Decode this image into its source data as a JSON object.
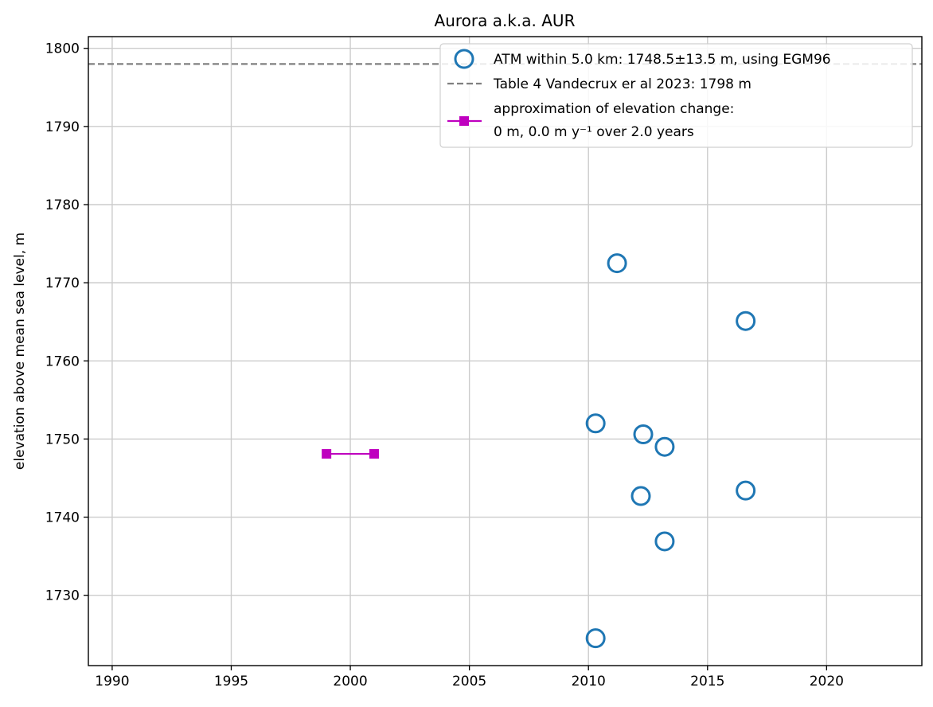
{
  "chart_data": {
    "type": "scatter",
    "title": "Aurora a.k.a. AUR",
    "xlabel": "",
    "ylabel": "elevation above mean sea level, m",
    "xlim": [
      1989,
      2024
    ],
    "ylim": [
      1721,
      1801.5
    ],
    "xticks": [
      1990,
      1995,
      2000,
      2005,
      2010,
      2015,
      2020
    ],
    "yticks": [
      1730,
      1740,
      1750,
      1760,
      1770,
      1780,
      1790,
      1800
    ],
    "grid": true,
    "legend_position": "top-right",
    "colors": {
      "atm": "#1f77b4",
      "reference": "#808080",
      "approx": "#bf00bf"
    },
    "series": [
      {
        "name": "ATM within 5.0 km: 1748.5±13.5 m, using EGM96",
        "kind": "scatter",
        "marker": "open-circle",
        "points": [
          {
            "x": 2010.3,
            "y": 1724.5
          },
          {
            "x": 2010.3,
            "y": 1752.0
          },
          {
            "x": 2011.2,
            "y": 1772.5
          },
          {
            "x": 2012.2,
            "y": 1742.7
          },
          {
            "x": 2012.3,
            "y": 1750.6
          },
          {
            "x": 2013.2,
            "y": 1736.9
          },
          {
            "x": 2013.2,
            "y": 1749.0
          },
          {
            "x": 2016.6,
            "y": 1765.1
          },
          {
            "x": 2016.6,
            "y": 1743.4
          }
        ]
      },
      {
        "name": "Table 4 Vandecrux er al 2023: 1798 m",
        "kind": "hline",
        "linestyle": "dashed",
        "y": 1798
      },
      {
        "name": "approximation of elevation change:",
        "name_line2": "0 m, 0.0 m y⁻¹ over 2.0 years",
        "kind": "line",
        "marker": "square",
        "points": [
          {
            "x": 1999,
            "y": 1748.1
          },
          {
            "x": 2001,
            "y": 1748.1
          }
        ]
      }
    ]
  }
}
